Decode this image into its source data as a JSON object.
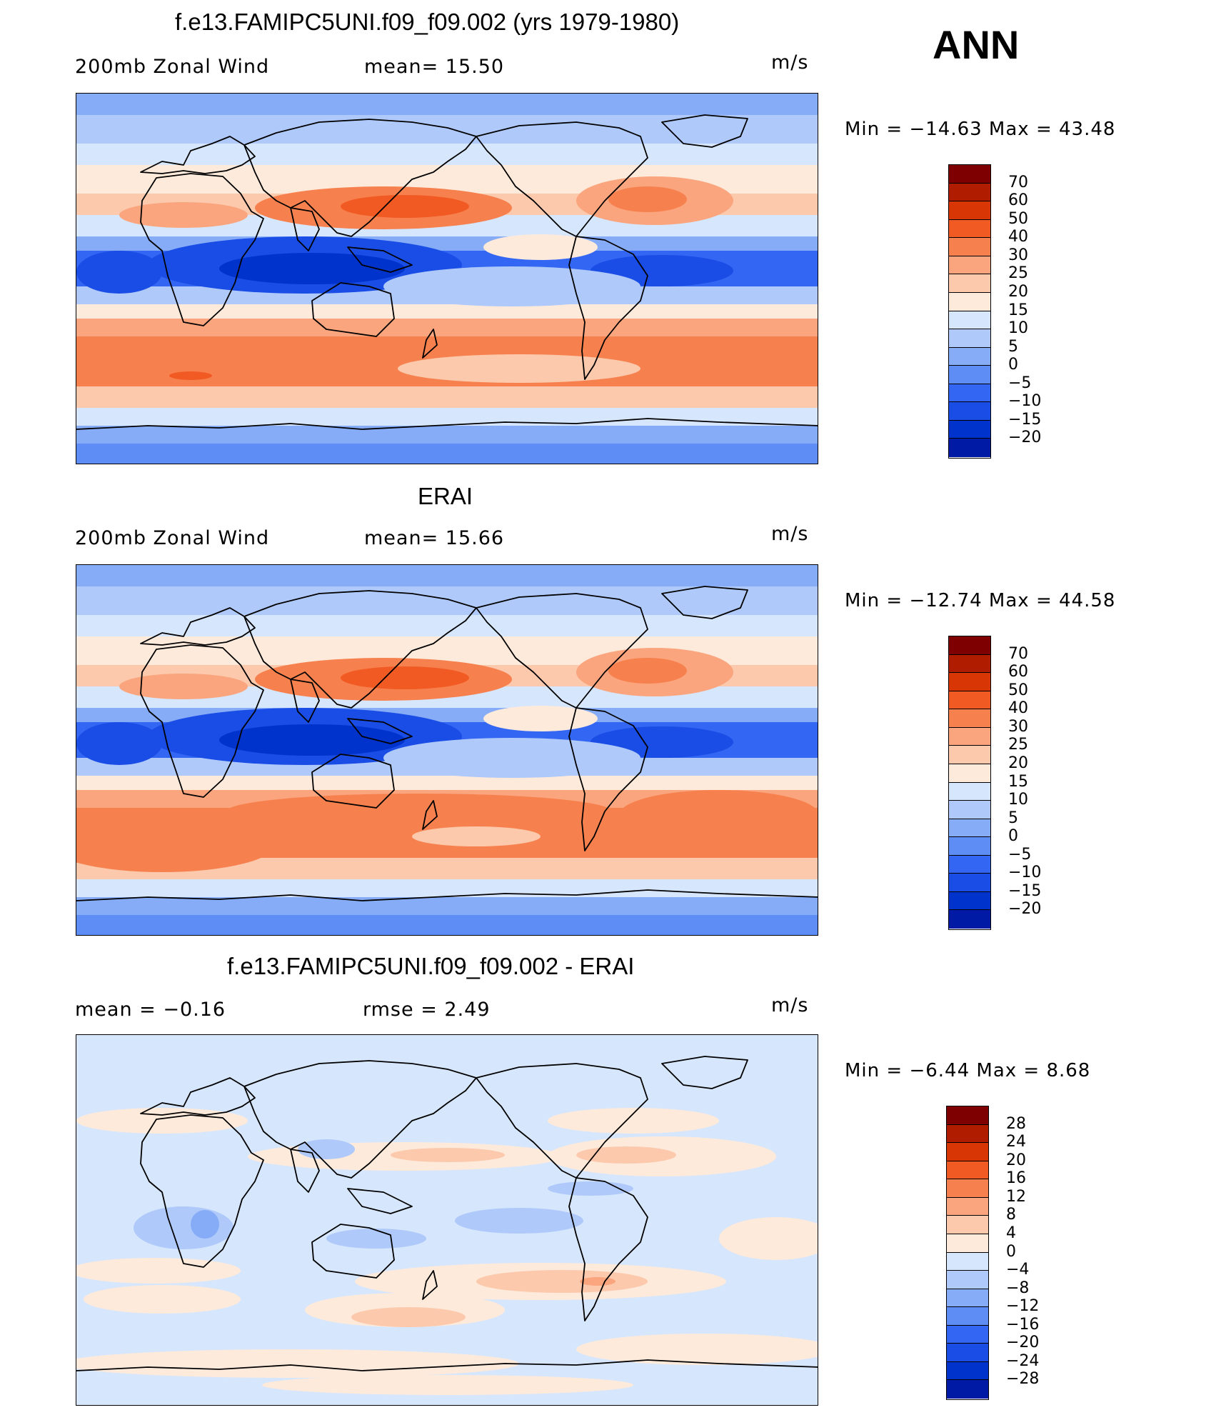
{
  "season": "ANN",
  "palettes": {
    "main": [
      "#00007f",
      "#001aa6",
      "#0033cc",
      "#1a4de6",
      "#3366f2",
      "#5e8ef5",
      "#86acf7",
      "#aec9fa",
      "#d6e6fc",
      "#feeadb",
      "#fcc9ad",
      "#faa57d",
      "#f7814e",
      "#f25a24",
      "#d93606",
      "#b01c00",
      "#7f0000"
    ],
    "diff": [
      "#00007f",
      "#001aa6",
      "#0033cc",
      "#1a4de6",
      "#3366f2",
      "#5e8ef5",
      "#86acf7",
      "#aec9fa",
      "#d6e6fc",
      "#feeadb",
      "#fcc9ad",
      "#faa57d",
      "#f7814e",
      "#f25a24",
      "#d93606",
      "#b01c00",
      "#7f0000"
    ]
  },
  "panels": [
    {
      "title": "f.e13.FAMIPC5UNI.f09_f09.002 (yrs 1979-1980)",
      "left_label": "200mb  Zonal  Wind",
      "center_label": "mean=   15.50",
      "units": "m/s",
      "minmax": "Min  =  −14.63  Max  =    43.48",
      "levels": [
        "70",
        "60",
        "50",
        "40",
        "30",
        "25",
        "20",
        "15",
        "10",
        "5",
        "0",
        "−5",
        "−10",
        "−15",
        "−20"
      ],
      "type": "model"
    },
    {
      "title": "ERAI",
      "left_label": "200mb  Zonal  Wind",
      "center_label": "mean=   15.66",
      "units": "m/s",
      "minmax": "Min  =  −12.74  Max  =    44.58",
      "levels": [
        "70",
        "60",
        "50",
        "40",
        "30",
        "25",
        "20",
        "15",
        "10",
        "5",
        "0",
        "−5",
        "−10",
        "−15",
        "−20"
      ],
      "type": "obs"
    },
    {
      "title": "f.e13.FAMIPC5UNI.f09_f09.002 - ERAI",
      "left_label": "mean  =    −0.16",
      "center_label": "rmse  =     2.49",
      "units": "m/s",
      "minmax": "Min  =    −6.44  Max  =     8.68",
      "levels": [
        "28",
        "24",
        "20",
        "16",
        "12",
        "8",
        "4",
        "0",
        "−4",
        "−8",
        "−12",
        "−16",
        "−20",
        "−24",
        "−28"
      ],
      "type": "diff"
    }
  ]
}
